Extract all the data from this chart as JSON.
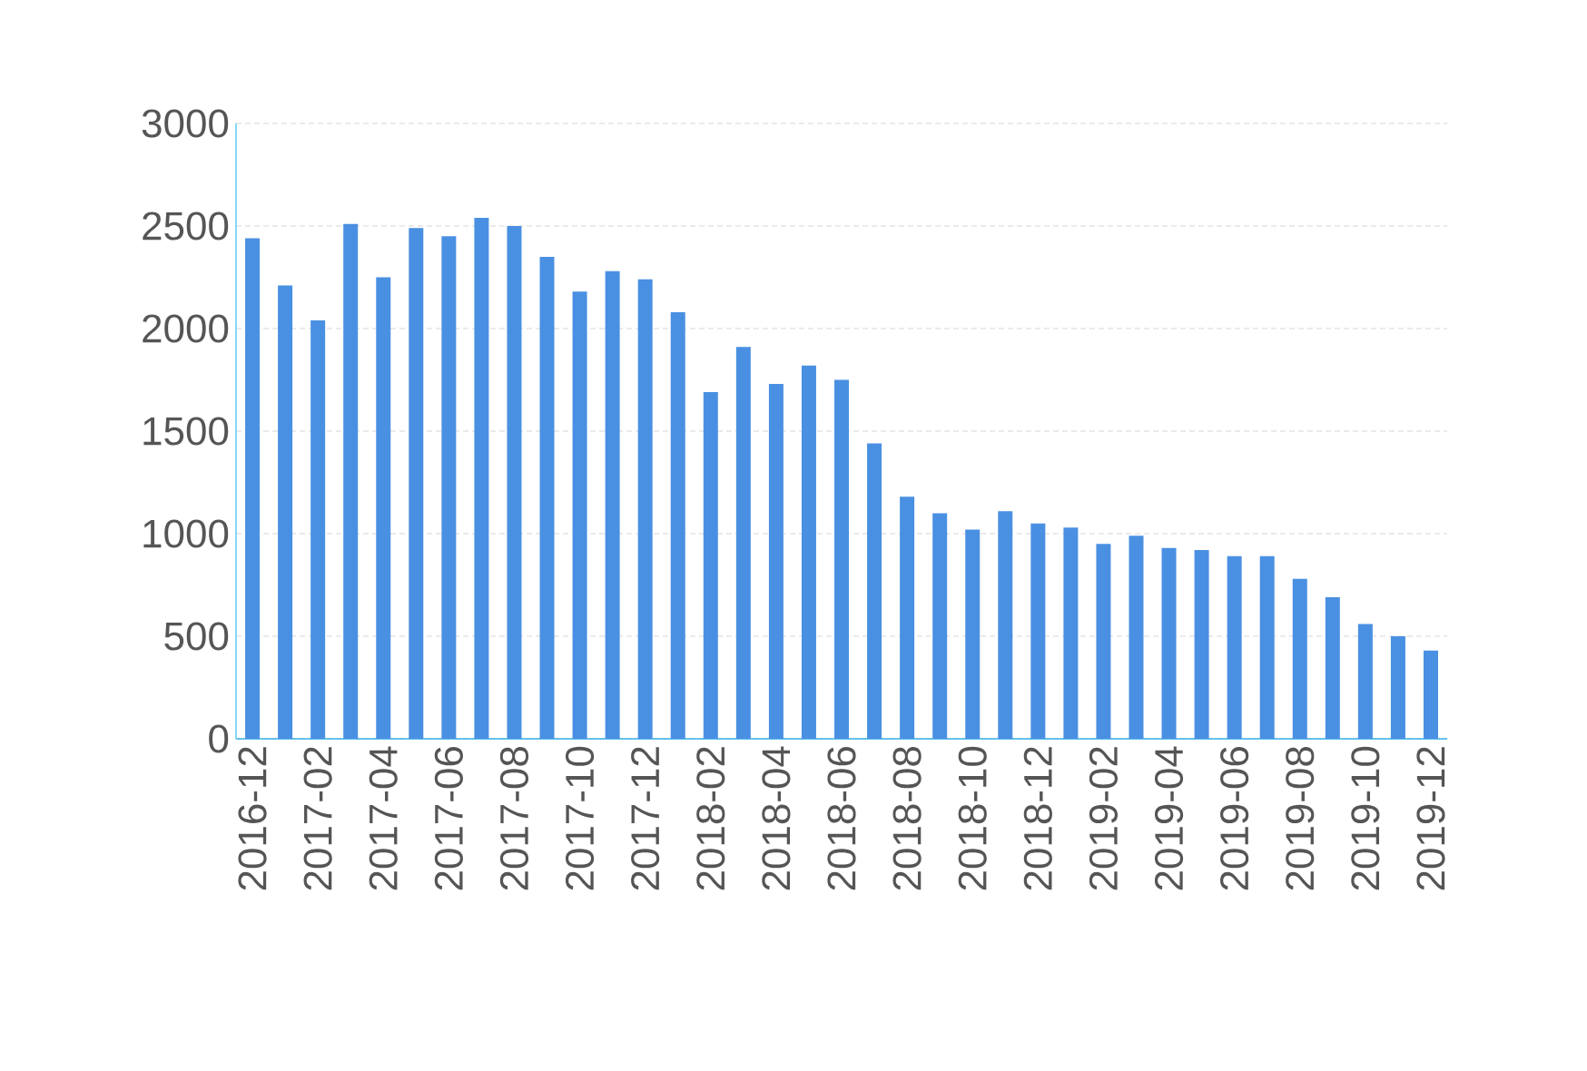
{
  "chart_data": {
    "type": "bar",
    "categories": [
      "2016-12",
      null,
      "2017-02",
      null,
      "2017-04",
      null,
      "2017-06",
      null,
      "2017-08",
      null,
      "2017-10",
      null,
      "2017-12",
      null,
      "2018-02",
      null,
      "2018-04",
      null,
      "2018-06",
      null,
      "2018-08",
      null,
      "2018-10",
      null,
      "2018-12",
      null,
      "2019-02",
      null,
      "2019-04",
      null,
      "2019-06",
      null,
      "2019-08",
      null,
      "2019-10",
      null,
      "2019-12"
    ],
    "values": [
      2440,
      2210,
      2040,
      2510,
      2250,
      2490,
      2450,
      2540,
      2500,
      2350,
      2180,
      2280,
      2240,
      2080,
      1690,
      1910,
      1730,
      1820,
      1750,
      1440,
      1180,
      1100,
      1020,
      1110,
      1050,
      1030,
      950,
      990,
      930,
      920,
      890,
      890,
      780,
      690,
      560,
      500,
      430
    ],
    "color": "#4a90e2",
    "ylim": [
      0,
      3000
    ],
    "yticks": [
      0,
      500,
      1000,
      1500,
      2000,
      2500,
      3000
    ],
    "grid": "y"
  }
}
